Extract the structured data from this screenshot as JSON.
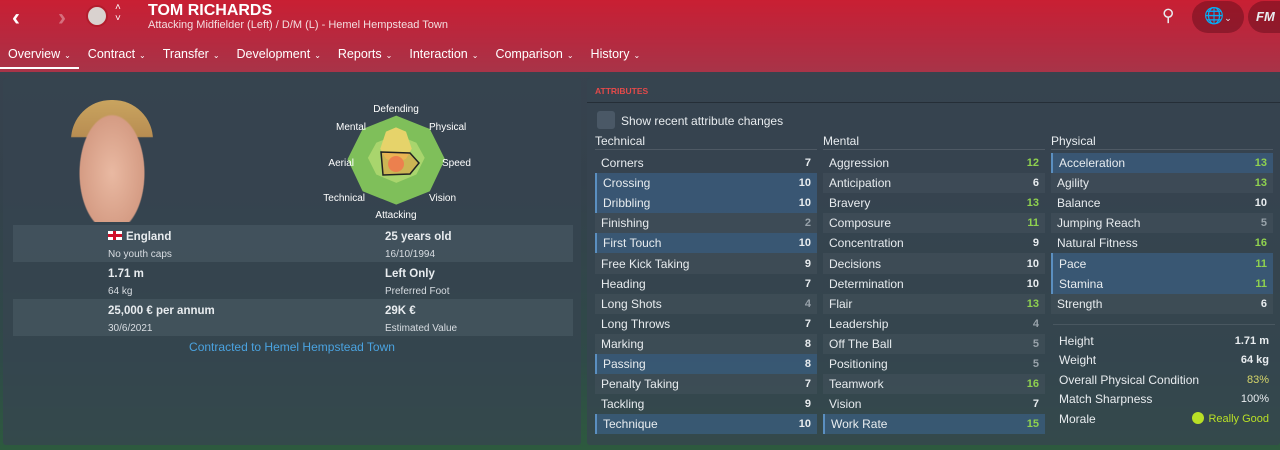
{
  "header": {
    "name": "TOM RICHARDS",
    "subtitle": "Attacking Midfielder (Left) / D/M (L) - Hemel Hempstead Town",
    "fm_logo": "FM",
    "back": "‹",
    "forward": "›"
  },
  "tabs": [
    {
      "label": "Overview"
    },
    {
      "label": "Contract"
    },
    {
      "label": "Transfer"
    },
    {
      "label": "Development"
    },
    {
      "label": "Reports"
    },
    {
      "label": "Interaction"
    },
    {
      "label": "Comparison"
    },
    {
      "label": "History"
    }
  ],
  "profile": {
    "radar_labels": {
      "top": "Defending",
      "top_right": "Physical",
      "right": "Speed",
      "bottom_right": "Vision",
      "bottom": "Attacking",
      "bottom_left": "Technical",
      "left": "Aerial",
      "top_left": "Mental"
    },
    "nation": "England",
    "youth": "No youth caps",
    "age": "25 years old",
    "dob": "16/10/1994",
    "height": "1.71 m",
    "weight": "64 kg",
    "foot": "Left Only",
    "foot_label": "Preferred Foot",
    "wage": "25,000 € per annum",
    "contract_end": "30/6/2021",
    "value": "29K €",
    "value_label": "Estimated Value",
    "contracted": "Contracted to Hemel Hempstead Town"
  },
  "attributes": {
    "title": "ATTRIBUTES",
    "show_changes": "Show recent attribute changes",
    "technical": {
      "label": "Technical",
      "items": [
        [
          "Corners",
          7,
          0
        ],
        [
          "Crossing",
          10,
          1
        ],
        [
          "Dribbling",
          10,
          1
        ],
        [
          "Finishing",
          2,
          0
        ],
        [
          "First Touch",
          10,
          1
        ],
        [
          "Free Kick Taking",
          9,
          0
        ],
        [
          "Heading",
          7,
          0
        ],
        [
          "Long Shots",
          4,
          0
        ],
        [
          "Long Throws",
          7,
          0
        ],
        [
          "Marking",
          8,
          0
        ],
        [
          "Passing",
          8,
          1
        ],
        [
          "Penalty Taking",
          7,
          0
        ],
        [
          "Tackling",
          9,
          0
        ],
        [
          "Technique",
          10,
          1
        ]
      ]
    },
    "mental": {
      "label": "Mental",
      "items": [
        [
          "Aggression",
          12,
          0
        ],
        [
          "Anticipation",
          6,
          0
        ],
        [
          "Bravery",
          13,
          0
        ],
        [
          "Composure",
          11,
          0
        ],
        [
          "Concentration",
          9,
          0
        ],
        [
          "Decisions",
          10,
          0
        ],
        [
          "Determination",
          10,
          0
        ],
        [
          "Flair",
          13,
          0
        ],
        [
          "Leadership",
          4,
          0
        ],
        [
          "Off The Ball",
          5,
          0
        ],
        [
          "Positioning",
          5,
          0
        ],
        [
          "Teamwork",
          16,
          0
        ],
        [
          "Vision",
          7,
          0
        ],
        [
          "Work Rate",
          15,
          1
        ]
      ]
    },
    "physical": {
      "label": "Physical",
      "items": [
        [
          "Acceleration",
          13,
          1
        ],
        [
          "Agility",
          13,
          0
        ],
        [
          "Balance",
          10,
          0
        ],
        [
          "Jumping Reach",
          5,
          0
        ],
        [
          "Natural Fitness",
          16,
          0
        ],
        [
          "Pace",
          11,
          1
        ],
        [
          "Stamina",
          11,
          1
        ],
        [
          "Strength",
          6,
          0
        ]
      ]
    },
    "extra": {
      "height_label": "Height",
      "height": "1.71 m",
      "weight_label": "Weight",
      "weight": "64 kg",
      "condition_label": "Overall Physical Condition",
      "condition": "83%",
      "sharpness_label": "Match Sharpness",
      "sharpness": "100%",
      "morale_label": "Morale",
      "morale": "Really Good"
    }
  },
  "colors": {
    "accent": "#c91f33",
    "good": "#8fd14f",
    "link": "#4aa3e0",
    "section_title": "#e34a4a"
  }
}
